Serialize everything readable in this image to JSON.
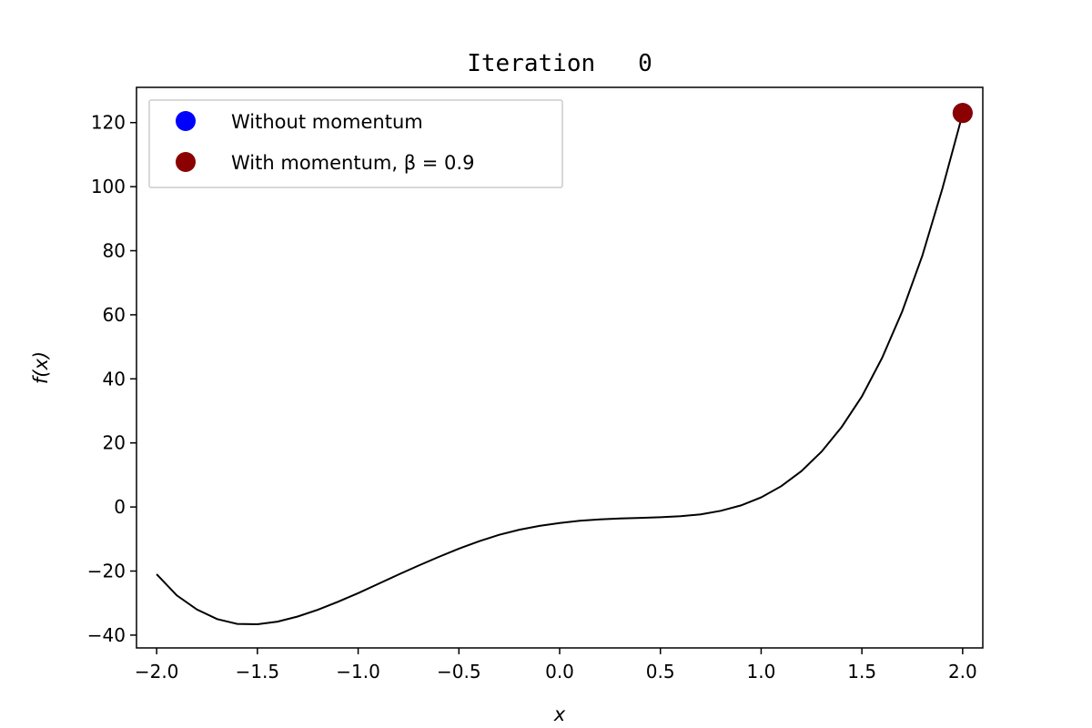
{
  "chart_data": {
    "type": "line",
    "title": "Iteration   0",
    "xlabel": "x",
    "ylabel": "f(x)",
    "xlim": [
      -2.1,
      2.1
    ],
    "ylim": [
      -44,
      131
    ],
    "xticks": [
      -2.0,
      -1.5,
      -1.0,
      -0.5,
      0.0,
      0.5,
      1.0,
      1.5,
      2.0
    ],
    "xtick_labels": [
      "−2.0",
      "−1.5",
      "−1.0",
      "−0.5",
      "0.0",
      "0.5",
      "1.0",
      "1.5",
      "2.0"
    ],
    "yticks": [
      -40,
      -20,
      0,
      20,
      40,
      60,
      80,
      100,
      120
    ],
    "ytick_labels": [
      "−40",
      "−20",
      "0",
      "20",
      "40",
      "60",
      "80",
      "100",
      "120"
    ],
    "grid": false,
    "legend_position": "top-left",
    "curve": {
      "color": "#000000",
      "x": [
        -2.0,
        -1.9,
        -1.8,
        -1.7,
        -1.6,
        -1.5,
        -1.4,
        -1.3,
        -1.2,
        -1.1,
        -1.0,
        -0.9,
        -0.8,
        -0.7,
        -0.6,
        -0.5,
        -0.4,
        -0.3,
        -0.2,
        -0.1,
        0.0,
        0.1,
        0.2,
        0.3,
        0.4,
        0.5,
        0.6,
        0.7,
        0.8,
        0.9,
        1.0,
        1.1,
        1.2,
        1.3,
        1.4,
        1.5,
        1.6,
        1.7,
        1.8,
        1.9,
        2.0
      ],
      "y": [
        -21,
        -27.6,
        -32,
        -35,
        -36.5,
        -36.6,
        -35.8,
        -34.2,
        -32.1,
        -29.6,
        -26.9,
        -24,
        -21.1,
        -18.3,
        -15.6,
        -13,
        -10.7,
        -8.7,
        -7.1,
        -5.9,
        -5,
        -4.3,
        -3.9,
        -3.6,
        -3.4,
        -3.2,
        -2.9,
        -2.3,
        -1.2,
        0.5,
        3,
        6.5,
        11.2,
        17.3,
        25,
        34.5,
        46.5,
        61,
        78.5,
        99.5,
        122.8
      ]
    },
    "series": [
      {
        "name": "Without momentum",
        "color": "#0000ff",
        "points": [
          {
            "x": 2.0,
            "y": 123
          }
        ]
      },
      {
        "name": "With momentum, β = 0.9",
        "color": "#8b0000",
        "points": [
          {
            "x": 2.0,
            "y": 123
          }
        ]
      }
    ]
  }
}
